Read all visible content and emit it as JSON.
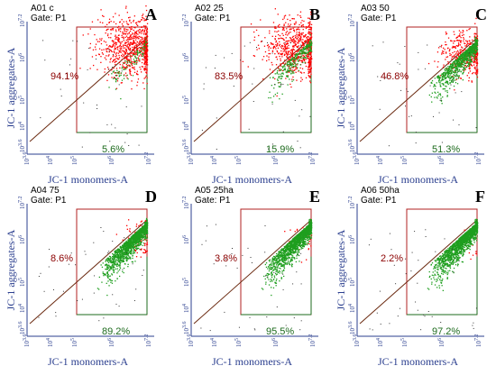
{
  "chart_data": [
    {
      "type": "scatter",
      "title": "A01 c",
      "gate": "Gate: P1",
      "letter": "A",
      "xlabel": "JC-1 monomers-A",
      "ylabel": "JC-1 aggregates-A",
      "upper_pct": "94.1%",
      "lower_pct": "5.6%",
      "upper_fraction": 0.941,
      "xticks": [
        "10^3.6",
        "10^4",
        "10^5",
        "10^6",
        "10^7.2"
      ],
      "yticks": [
        "10^3.6",
        "10^4",
        "10^5",
        "10^6",
        "10^7.2"
      ]
    },
    {
      "type": "scatter",
      "title": "A02 25",
      "gate": "Gate: P1",
      "letter": "B",
      "xlabel": "JC-1 monomers-A",
      "ylabel": "",
      "upper_pct": "83.5%",
      "lower_pct": "15.9%",
      "upper_fraction": 0.835,
      "xticks": [
        "10^3.6",
        "10^4",
        "10^5",
        "10^6",
        "10^7.2"
      ],
      "yticks": [
        "10^3.6",
        "10^4",
        "10^5",
        "10^6",
        "10^7.2"
      ]
    },
    {
      "type": "scatter",
      "title": "A03 50",
      "gate": "Gate: P1",
      "letter": "C",
      "xlabel": "JC-1 monomers-A",
      "ylabel": "JC-1 aggregates-A",
      "upper_pct": "46.8%",
      "lower_pct": "51.3%",
      "upper_fraction": 0.468,
      "xticks": [
        "10^3.6",
        "10^4",
        "10^5",
        "10^6",
        "10^7.2"
      ],
      "yticks": [
        "10^3.6",
        "10^4",
        "10^5",
        "10^6",
        "10^7.2"
      ]
    },
    {
      "type": "scatter",
      "title": "A04 75",
      "gate": "Gate: P1",
      "letter": "D",
      "xlabel": "JC-1 monomers-A",
      "ylabel": "JC-1 aggregates-A",
      "upper_pct": "8.6%",
      "lower_pct": "89.2%",
      "upper_fraction": 0.086,
      "xticks": [
        "10^3.6",
        "10^4",
        "10^5",
        "10^6",
        "10^7.2"
      ],
      "yticks": [
        "10^3.6",
        "10^4",
        "10^5",
        "10^6",
        "10^7.2"
      ]
    },
    {
      "type": "scatter",
      "title": "A05 25ha",
      "gate": "Gate: P1",
      "letter": "E",
      "xlabel": "JC-1 monomers-A",
      "ylabel": "",
      "upper_pct": "3.8%",
      "lower_pct": "95.5%",
      "upper_fraction": 0.038,
      "xticks": [
        "10^3.6",
        "10^4",
        "10^5",
        "10^6",
        "10^7.2"
      ],
      "yticks": [
        "10^3.6",
        "10^4",
        "10^5",
        "10^6",
        "10^7.2"
      ]
    },
    {
      "type": "scatter",
      "title": "A06 50ha",
      "gate": "Gate: P1",
      "letter": "F",
      "xlabel": "JC-1 monomers-A",
      "ylabel": "JC-1 aggregates-A",
      "upper_pct": "2.2%",
      "lower_pct": "97.2%",
      "upper_fraction": 0.022,
      "xticks": [
        "10^3.6",
        "10^4",
        "10^5",
        "10^6",
        "10^7.2"
      ],
      "yticks": [
        "10^3.6",
        "10^4",
        "10^5",
        "10^6",
        "10^7.2"
      ]
    }
  ],
  "colors": {
    "aggregates": "#ff0000",
    "monomers": "#1e9e1e",
    "gate": "#b22222",
    "axis": "#2b3f8f"
  }
}
